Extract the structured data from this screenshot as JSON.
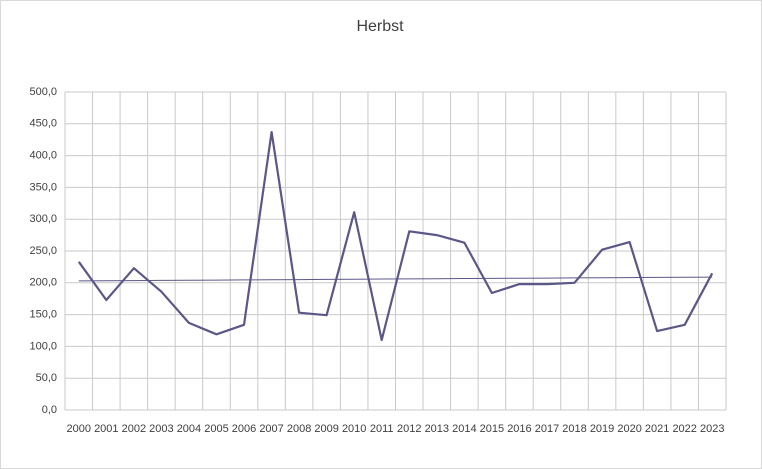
{
  "chart_data": {
    "type": "line",
    "title": "Herbst",
    "categories": [
      "2000",
      "2001",
      "2002",
      "2003",
      "2004",
      "2005",
      "2006",
      "2007",
      "2008",
      "2009",
      "2010",
      "2011",
      "2012",
      "2013",
      "2014",
      "2015",
      "2016",
      "2017",
      "2018",
      "2019",
      "2020",
      "2021",
      "2022",
      "2023"
    ],
    "series": [
      {
        "color": "#5b5887",
        "values": [
          233,
          173,
          223,
          186,
          137,
          119,
          134,
          437,
          153,
          149,
          311,
          110,
          281,
          275,
          263,
          184,
          198,
          198,
          200,
          252,
          264,
          124,
          134,
          215
        ]
      },
      {
        "color": "#5b5887",
        "trendline": true,
        "values": [
          203,
          203.3,
          203.5,
          203.8,
          204,
          204.3,
          204.6,
          204.8,
          205.1,
          205.3,
          205.6,
          205.9,
          206.1,
          206.4,
          206.7,
          206.9,
          207.2,
          207.4,
          207.7,
          208,
          208.2,
          208.5,
          208.7,
          209
        ]
      }
    ],
    "ylim": [
      0,
      500
    ],
    "yticks": [
      {
        "value": 0,
        "label": "0,0"
      },
      {
        "value": 50,
        "label": "50,0"
      },
      {
        "value": 100,
        "label": "100,0"
      },
      {
        "value": 150,
        "label": "150,0"
      },
      {
        "value": 200,
        "label": "200,0"
      },
      {
        "value": 250,
        "label": "250,0"
      },
      {
        "value": 300,
        "label": "300,0"
      },
      {
        "value": 350,
        "label": "350,0"
      },
      {
        "value": 400,
        "label": "400,0"
      },
      {
        "value": 450,
        "label": "450,0"
      },
      {
        "value": 500,
        "label": "500,0"
      }
    ],
    "grid": true
  }
}
